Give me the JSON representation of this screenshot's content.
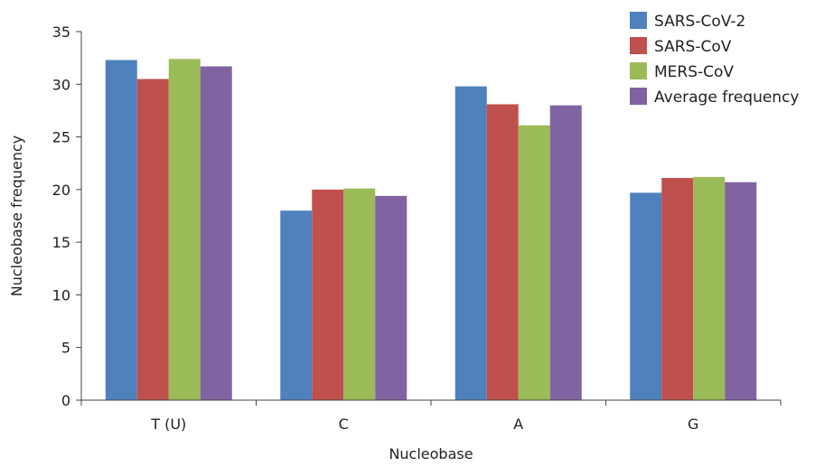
{
  "chart_data": {
    "type": "bar",
    "title": "",
    "xlabel": "Nucleobase",
    "ylabel": "Nucleobase frequency",
    "categories": [
      "T (U)",
      "C",
      "A",
      "G"
    ],
    "ylim": [
      0,
      35
    ],
    "yticks": [
      0,
      5,
      10,
      15,
      20,
      25,
      30,
      35
    ],
    "grid": false,
    "legend_position": "top-right",
    "series": [
      {
        "name": "SARS-CoV-2",
        "color": "#4F81BD",
        "values": [
          32.3,
          18.0,
          29.8,
          19.7
        ]
      },
      {
        "name": "SARS-CoV",
        "color": "#C0504D",
        "values": [
          30.5,
          20.0,
          28.1,
          21.1
        ]
      },
      {
        "name": "MERS-CoV",
        "color": "#9BBB59",
        "values": [
          32.4,
          20.1,
          26.1,
          21.2
        ]
      },
      {
        "name": "Average frequency",
        "color": "#8064A2",
        "values": [
          31.7,
          19.4,
          28.0,
          20.7
        ]
      }
    ]
  }
}
